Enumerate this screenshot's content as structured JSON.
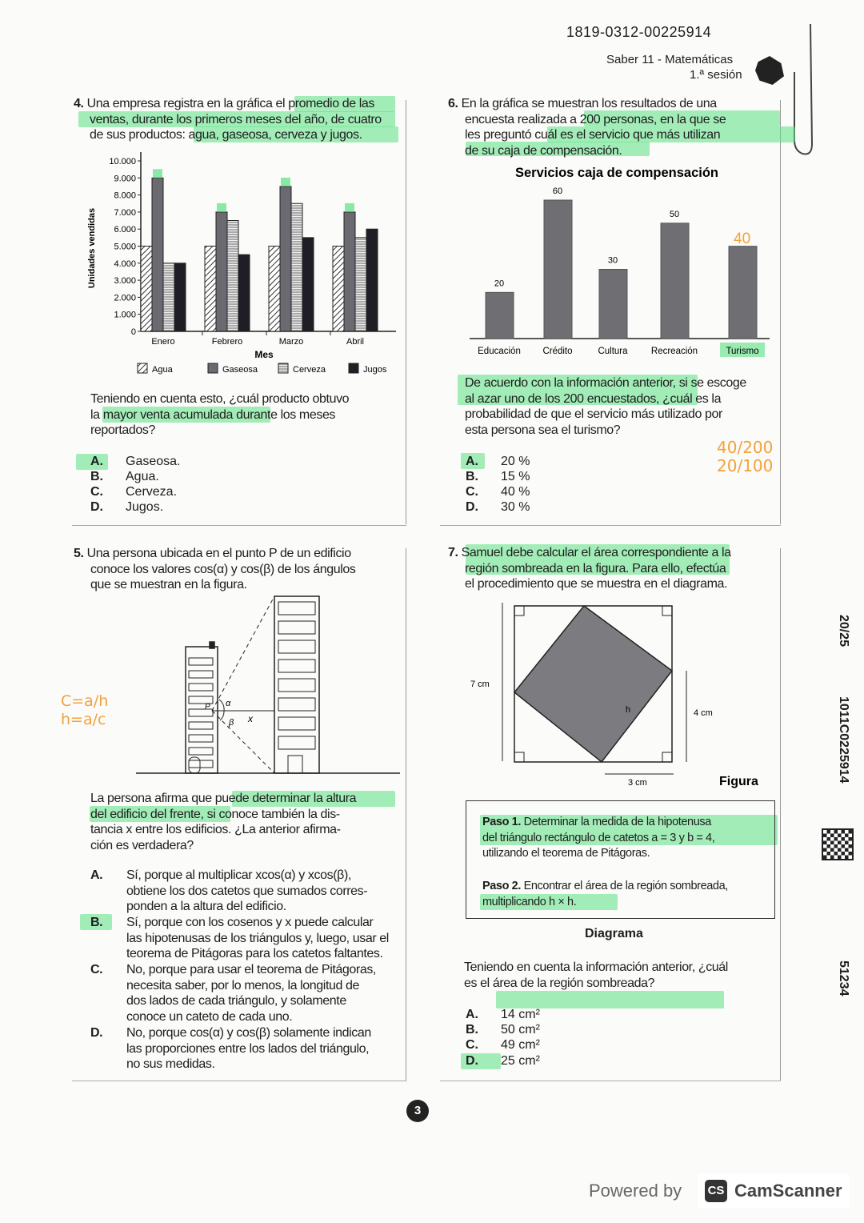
{
  "header": {
    "code": "1819-0312-00225914",
    "subject": "Saber 11 - Matemáticas",
    "session": "1.ª sesión"
  },
  "q4": {
    "number": "4.",
    "lines": [
      "Una empresa registra en la gráfica el promedio de las",
      "ventas, durante los primeros meses del año, de cuatro",
      "de sus productos: agua, gaseosa, cerveza y jugos."
    ],
    "question_lines": [
      "Teniendo en cuenta esto, ¿cuál producto obtuvo",
      "la mayor venta acumulada durante los meses",
      "reportados?"
    ],
    "options": [
      {
        "letter": "A.",
        "text": "Gaseosa."
      },
      {
        "letter": "B.",
        "text": "Agua."
      },
      {
        "letter": "C.",
        "text": "Cerveza."
      },
      {
        "letter": "D.",
        "text": "Jugos."
      }
    ]
  },
  "q5": {
    "number": "5.",
    "lines": [
      "Una persona ubicada en el punto P de un edificio",
      "conoce los valores cos(α) y cos(β) de los ángulos",
      "que se muestran en la figura."
    ],
    "figure_labels": {
      "p": "P",
      "alpha": "α",
      "beta": "β",
      "x": "x"
    },
    "question_lines": [
      "La persona afirma que puede determinar la altura",
      "del edificio del frente, si conoce también la dis-",
      "tancia x entre los edificios. ¿La anterior afirma-",
      "ción es verdadera?"
    ],
    "options": [
      {
        "letter": "A.",
        "lines": [
          "Sí, porque al multiplicar xcos(α) y xcos(β),",
          "obtiene los dos catetos que sumados corres-",
          "ponden a la altura del edificio."
        ]
      },
      {
        "letter": "B.",
        "lines": [
          "Sí, porque con los cosenos y x puede calcular",
          "las hipotenusas de los triángulos y, luego, usar el",
          "teorema de Pitágoras para los catetos faltantes."
        ]
      },
      {
        "letter": "C.",
        "lines": [
          "No, porque para usar el teorema de Pitágoras,",
          "necesita saber, por lo menos, la longitud de",
          "dos lados de cada triángulo, y solamente",
          "conoce un cateto de cada uno."
        ]
      },
      {
        "letter": "D.",
        "lines": [
          "No, porque cos(α) y cos(β) solamente indican",
          "las proporciones entre los lados del triángulo,",
          "no sus medidas."
        ]
      }
    ],
    "handwritten": [
      "C=a/h",
      "h=a/c"
    ]
  },
  "q6": {
    "number": "6.",
    "lines": [
      "En la gráfica se muestran los resultados de una",
      "encuesta realizada a 200 personas, en la que se",
      "les preguntó cuál es el servicio que más utilizan",
      "de su caja de compensación."
    ],
    "question_lines": [
      "De acuerdo con la información anterior, si se escoge",
      "al azar uno de los 200 encuestados, ¿cuál es la",
      "probabilidad de que el servicio más utilizado por",
      "esta persona sea el turismo?"
    ],
    "options": [
      {
        "letter": "A.",
        "text": "20 %"
      },
      {
        "letter": "B.",
        "text": "15 %"
      },
      {
        "letter": "C.",
        "text": "40 %"
      },
      {
        "letter": "D.",
        "text": "30 %"
      }
    ],
    "handwritten": [
      "40",
      "40/200",
      "20/100"
    ]
  },
  "q7": {
    "number": "7.",
    "lines": [
      "Samuel debe calcular el área correspondiente a la",
      "región sombreada en la figura. Para ello, efectúa",
      "el procedimiento que se muestra en el diagrama."
    ],
    "figure": {
      "side_label": "7 cm",
      "right_label": "4 cm",
      "bottom_label": "3 cm",
      "h_label": "h",
      "caption": "Figura"
    },
    "diagram": {
      "step1_title": "Paso 1.",
      "step1_lines": [
        "Determinar la medida de la hipotenusa",
        "del triángulo rectángulo de catetos a = 3 y b = 4,",
        "utilizando el teorema de Pitágoras."
      ],
      "step2_title": "Paso 2.",
      "step2_lines": [
        "Encontrar el área de la región sombreada,",
        "multiplicando h × h."
      ],
      "caption": "Diagrama"
    },
    "question_lines": [
      "Teniendo en cuenta la información anterior, ¿cuál",
      "es el área de la región sombreada?"
    ],
    "options": [
      {
        "letter": "A.",
        "text": "14 cm²"
      },
      {
        "letter": "B.",
        "text": "50 cm²"
      },
      {
        "letter": "C.",
        "text": "49 cm²"
      },
      {
        "letter": "D.",
        "text": "25 cm²"
      }
    ]
  },
  "side": {
    "score": "20/25",
    "id": "1011C0225914",
    "code": "51234"
  },
  "page_number": "3",
  "footer": {
    "powered": "Powered by",
    "brand_badge": "CS",
    "brand": "CamScanner"
  },
  "colors": {
    "highlight": "#5ae182",
    "handwriting": "#f2a23a",
    "bar_gray": "#6f6f73"
  },
  "chart_data": [
    {
      "type": "bar",
      "title": "",
      "xlabel": "Mes",
      "ylabel": "Unidades vendidas",
      "categories": [
        "Enero",
        "Febrero",
        "Marzo",
        "Abril"
      ],
      "yticks": [
        "0",
        "1.000",
        "2.000",
        "3.000",
        "4.000",
        "5.000",
        "6.000",
        "7.000",
        "8.000",
        "9.000",
        "10.000"
      ],
      "ylim": [
        0,
        10000
      ],
      "legend_placement": "bottom",
      "series": [
        {
          "name": "Agua",
          "values": [
            5000,
            5000,
            5000,
            5000
          ]
        },
        {
          "name": "Gaseosa",
          "values": [
            9000,
            7000,
            8500,
            7000
          ]
        },
        {
          "name": "Cerveza",
          "values": [
            4000,
            6500,
            7500,
            5500
          ]
        },
        {
          "name": "Jugos",
          "values": [
            4000,
            4500,
            5500,
            6000
          ]
        }
      ]
    },
    {
      "type": "bar",
      "title": "Servicios caja de compensación",
      "categories": [
        "Educación",
        "Crédito",
        "Cultura",
        "Recreación",
        "Turismo"
      ],
      "values": [
        20,
        60,
        30,
        50,
        40
      ],
      "data_labels": [
        "20",
        "60",
        "30",
        "50",
        ""
      ],
      "ylim": [
        0,
        60
      ]
    }
  ]
}
